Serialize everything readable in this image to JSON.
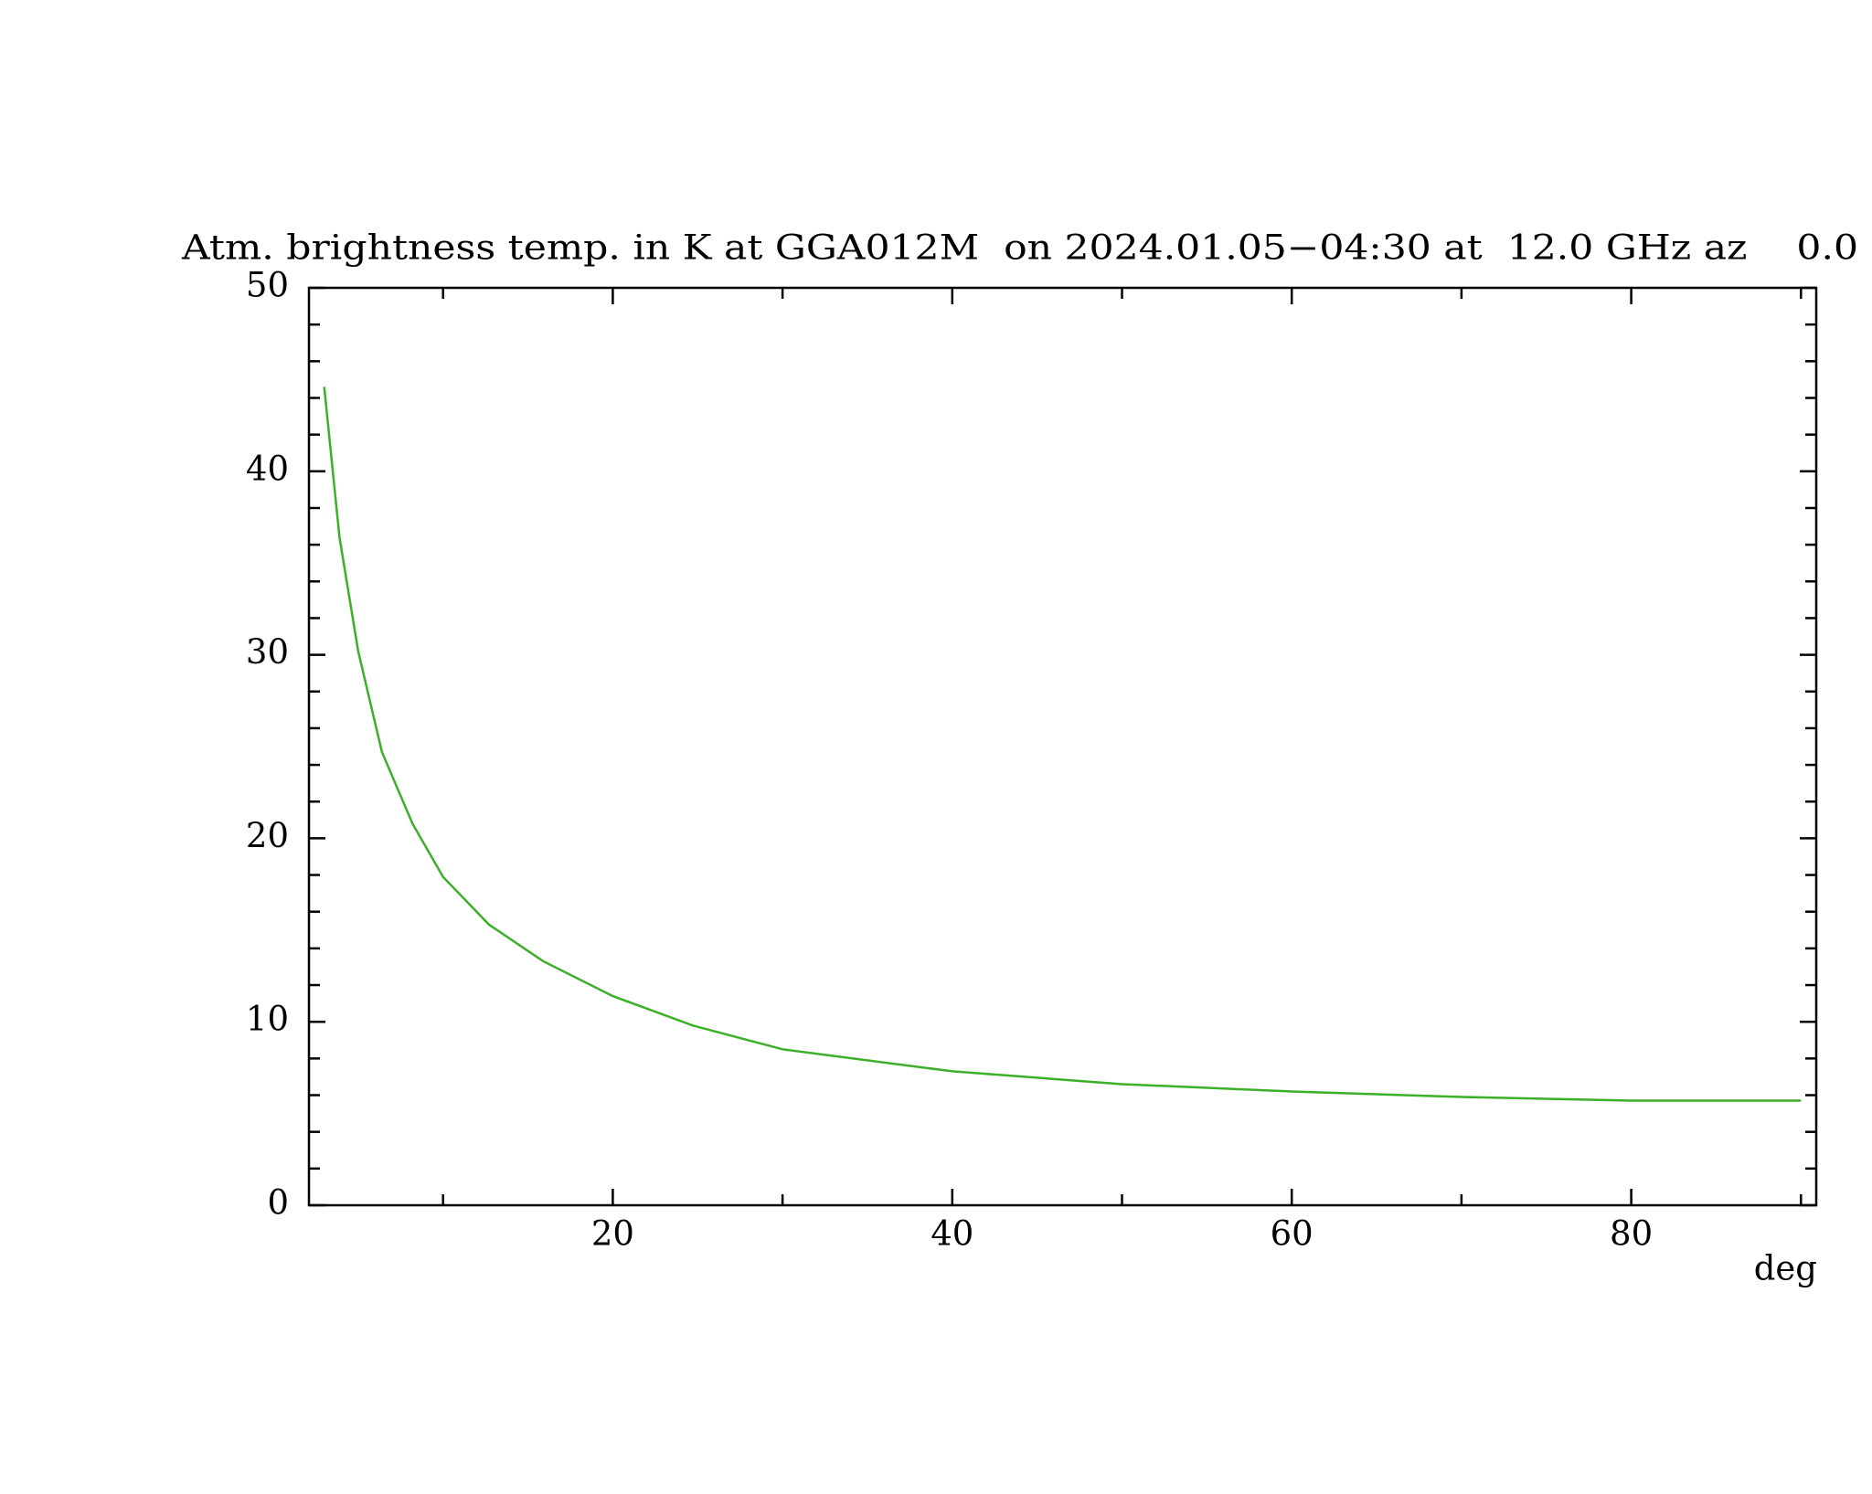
{
  "chart_data": {
    "type": "line",
    "title": "Atm. brightness temp. in K at GGA012M  on 2024.01.05−04:30 at  12.0 GHz az    0.0",
    "x_label": "deg",
    "series": [
      {
        "color": "#3cb028",
        "x": [
          3.0,
          3.9,
          5.0,
          6.4,
          8.2,
          10,
          12.7,
          15.9,
          20,
          24.7,
          30,
          40,
          50,
          60,
          70,
          80,
          90
        ],
        "values": [
          44.6,
          36.4,
          30.2,
          24.7,
          20.8,
          17.9,
          15.3,
          13.3,
          11.4,
          9.8,
          8.5,
          7.3,
          6.6,
          6.2,
          5.9,
          5.7,
          5.7
        ]
      }
    ],
    "xlim": [
      2.1,
      90.9
    ],
    "xticks": [
      20,
      40,
      60,
      80
    ],
    "xticks_minor": [
      10,
      30,
      50,
      70,
      90
    ],
    "ylim": [
      0,
      50
    ],
    "yticks": [
      0,
      10,
      20,
      30,
      40,
      50
    ],
    "yticks_minor": [
      2,
      4,
      6,
      8,
      12,
      14,
      16,
      18,
      22,
      24,
      26,
      28,
      32,
      34,
      36,
      38,
      42,
      44,
      46,
      48
    ]
  }
}
